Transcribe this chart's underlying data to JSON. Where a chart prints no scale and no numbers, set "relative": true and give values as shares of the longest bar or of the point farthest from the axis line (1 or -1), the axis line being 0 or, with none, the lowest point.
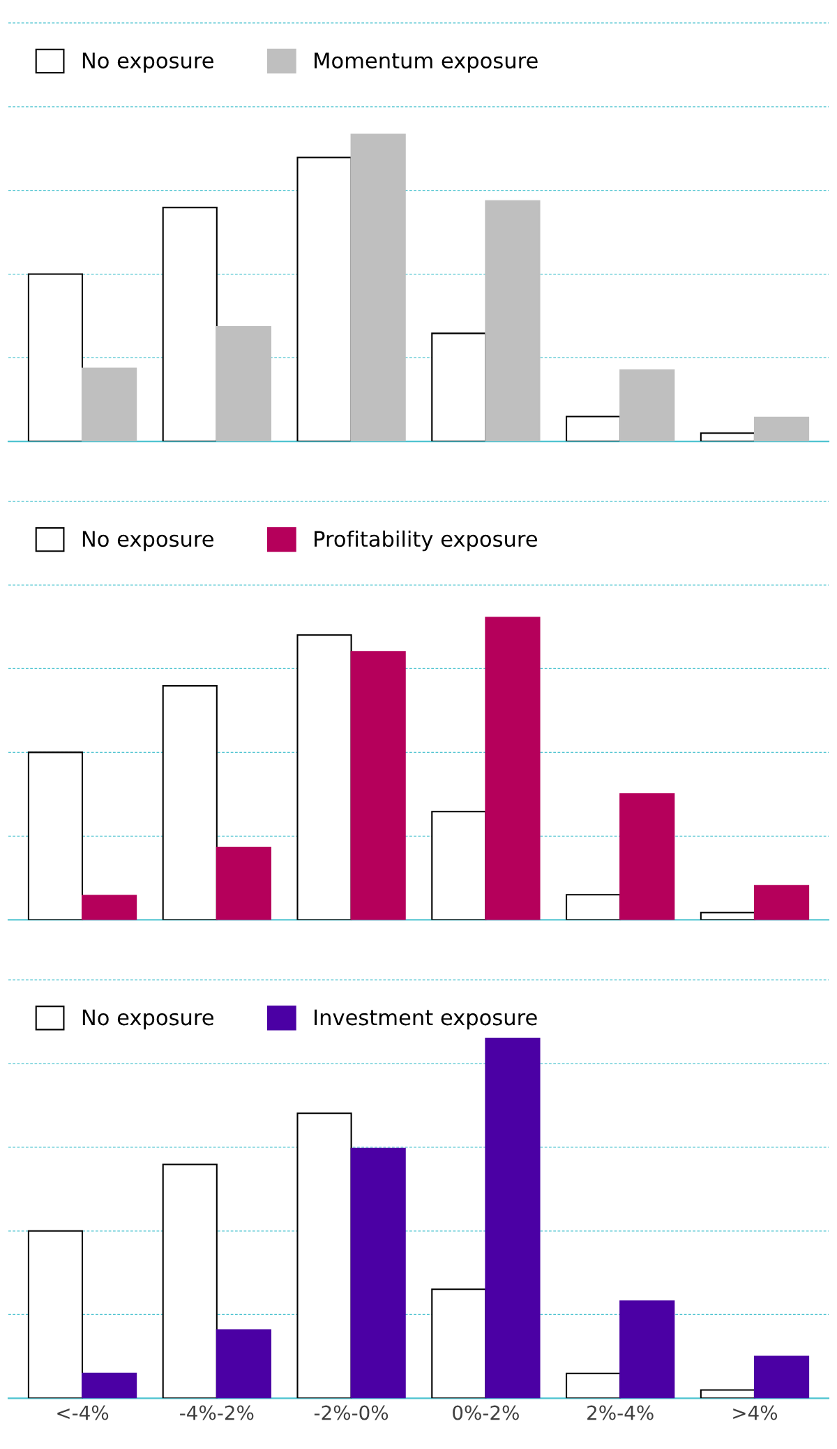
{
  "chart_data": [
    {
      "type": "bar",
      "relative": true,
      "categories": [
        null,
        null,
        null,
        null,
        null,
        null
      ],
      "legend": "top left",
      "series": [
        {
          "name": "No exposure",
          "color": "#ffffff",
          "values": [
            0.545,
            0.762,
            0.925,
            0.352,
            0.081,
            0.027
          ]
        },
        {
          "name": "Momentum exposure",
          "color": "#bfbfbf",
          "values": [
            0.238,
            0.373,
            1,
            0.783,
            0.232,
            0.078
          ]
        }
      ],
      "ref_lines": [
        {
          "axis": "y",
          "value": 0.273,
          "color": "#4dc3d0",
          "line_style": "dashed"
        },
        {
          "axis": "y",
          "value": 0.545,
          "color": "#4dc3d0",
          "line_style": "dashed"
        },
        {
          "axis": "y",
          "value": 0.818,
          "color": "#4dc3d0",
          "line_style": "dashed"
        },
        {
          "axis": "y",
          "value": 1.09,
          "color": "#4dc3d0",
          "line_style": "dashed"
        },
        {
          "axis": "y",
          "value": 1.363,
          "color": "#4dc3d0",
          "line_style": "dashed"
        }
      ]
    },
    {
      "type": "bar",
      "relative": true,
      "categories": [
        null,
        null,
        null,
        null,
        null,
        null
      ],
      "legend": "top left",
      "series": [
        {
          "name": "No exposure",
          "color": "#ffffff",
          "values": [
            0.554,
            0.774,
            0.942,
            0.358,
            0.083,
            0.024
          ]
        },
        {
          "name": "Profitability exposure",
          "color": "#b5005b",
          "values": [
            0.08,
            0.239,
            0.887,
            1,
            0.416,
            0.113
          ]
        }
      ],
      "ref_lines": [
        {
          "axis": "y",
          "value": 0.277,
          "color": "#4dc3d0",
          "line_style": "dashed"
        },
        {
          "axis": "y",
          "value": 0.554,
          "color": "#4dc3d0",
          "line_style": "dashed"
        },
        {
          "axis": "y",
          "value": 0.831,
          "color": "#4dc3d0",
          "line_style": "dashed"
        },
        {
          "axis": "y",
          "value": 1.107,
          "color": "#4dc3d0",
          "line_style": "dashed"
        },
        {
          "axis": "y",
          "value": 1.384,
          "color": "#4dc3d0",
          "line_style": "dashed"
        }
      ]
    },
    {
      "type": "bar",
      "relative": true,
      "categories": [
        "<-4%",
        "-4%-2%",
        "-2%-0%",
        "0%-2%",
        "2%-4%",
        ">4%"
      ],
      "legend": "top left",
      "tick_labels": "x",
      "series": [
        {
          "name": "No exposure",
          "color": "#ffffff",
          "values": [
            0.465,
            0.65,
            0.792,
            0.303,
            0.069,
            0.023
          ]
        },
        {
          "name": "Investment exposure",
          "color": "#4b00a4",
          "values": [
            0.069,
            0.19,
            0.694,
            1,
            0.27,
            0.116
          ]
        }
      ],
      "ref_lines": [
        {
          "axis": "y",
          "value": 0.233,
          "color": "#4dc3d0",
          "line_style": "dashed"
        },
        {
          "axis": "y",
          "value": 0.465,
          "color": "#4dc3d0",
          "line_style": "dashed"
        },
        {
          "axis": "y",
          "value": 0.698,
          "color": "#4dc3d0",
          "line_style": "dashed"
        },
        {
          "axis": "y",
          "value": 0.93,
          "color": "#4dc3d0",
          "line_style": "dashed"
        },
        {
          "axis": "y",
          "value": 1.163,
          "color": "#4dc3d0",
          "line_style": "dashed"
        }
      ]
    }
  ]
}
